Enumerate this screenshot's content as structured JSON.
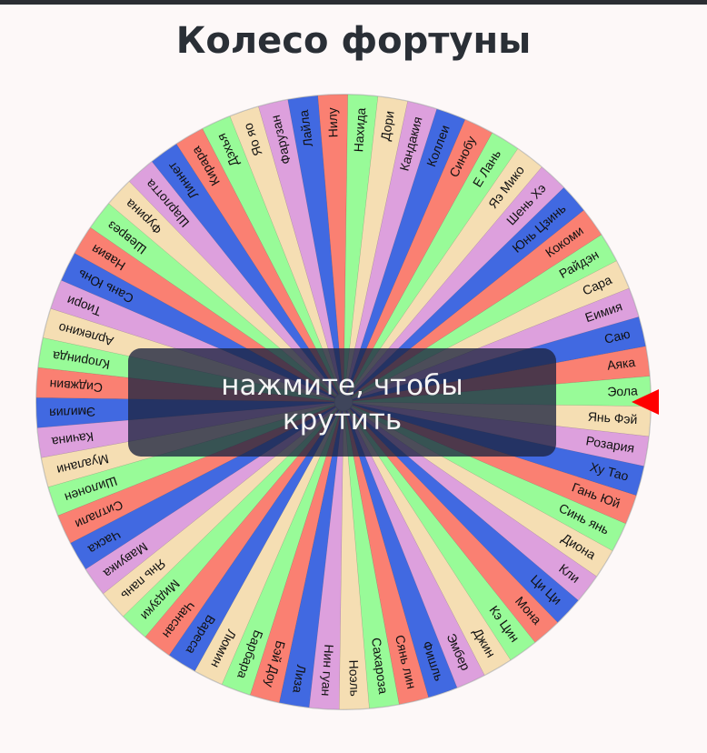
{
  "title": "Колесо фортуны",
  "wheel": {
    "segments": [
      "Нилу",
      "Нахида",
      "Дори",
      "Кандакия",
      "Коллеи",
      "Синобу",
      "Е Лань",
      "Яэ Мико",
      "Шень Хэ",
      "Юнь Цзинь",
      "Кокоми",
      "Райдэн",
      "Сара",
      "Еимия",
      "Саю",
      "Аяка",
      "Эола",
      "Янь Фэй",
      "Розария",
      "Ху Тао",
      "Гань Юй",
      "Синь янь",
      "Диона",
      "Кли",
      "Ци Ци",
      "Мона",
      "Кэ Цин",
      "Джин",
      "Эмбер",
      "Фишль",
      "Сянь лин",
      "Сахароза",
      "Ноэль",
      "Нин гуан",
      "Лиза",
      "Бэй Доу",
      "Барбара",
      "Люмин",
      "Вареса",
      "Чансан",
      "Мидзуки",
      "Янь пань",
      "Мавуика",
      "Часка",
      "Ситлали",
      "Шилонен",
      "Муалани",
      "Качина",
      "Эмилия",
      "Сиджвин",
      "Клоринда",
      "Арлекино",
      "Тиори",
      "Сань Юнь",
      "Навия",
      "Шеврез",
      "Фурина",
      "Шарлотта",
      "Линнет",
      "Кирара",
      "Дэхья",
      "Яо яо",
      "Фарузан",
      "Лайла"
    ],
    "segment_colors": [
      "#fa8072",
      "#98fb98",
      "#f5deb3",
      "#dda0dd",
      "#4169e1",
      "#fa8072",
      "#98fb98",
      "#f5deb3",
      "#dda0dd",
      "#4169e1",
      "#fa8072",
      "#98fb98",
      "#f5deb3",
      "#dda0dd",
      "#4169e1",
      "#fa8072",
      "#98fb98",
      "#f5deb3",
      "#dda0dd",
      "#4169e1",
      "#fa8072",
      "#98fb98",
      "#f5deb3",
      "#dda0dd",
      "#4169e1",
      "#fa8072",
      "#98fb98",
      "#f5deb3",
      "#dda0dd",
      "#4169e1",
      "#fa8072",
      "#98fb98",
      "#f5deb3",
      "#dda0dd",
      "#4169e1",
      "#fa8072",
      "#98fb98",
      "#f5deb3",
      "#4169e1",
      "#fa8072",
      "#98fb98",
      "#f5deb3",
      "#dda0dd",
      "#4169e1",
      "#fa8072",
      "#98fb98",
      "#f5deb3",
      "#dda0dd",
      "#4169e1",
      "#fa8072",
      "#98fb98",
      "#f5deb3",
      "#dda0dd",
      "#4169e1",
      "#fa8072",
      "#98fb98",
      "#f5deb3",
      "#dda0dd",
      "#4169e1",
      "#fa8072",
      "#98fb98",
      "#f5deb3",
      "#dda0dd",
      "#4169e1"
    ]
  },
  "spin_button": "нажмите, чтобы крутить"
}
